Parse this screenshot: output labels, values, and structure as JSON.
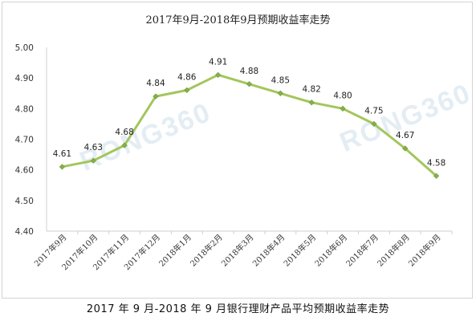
{
  "title": "2017年9月-2018年9月预期收益率走势",
  "caption": "2017 年 9 月-2018 年 9 月银行理财产品平均预期收益率走势",
  "watermark": "RONG360",
  "colors": {
    "line": "#a3c65c",
    "marker": "#86b04a",
    "axis": "#cfcfcf"
  },
  "chart_data": {
    "type": "line",
    "title": "2017年9月-2018年9月预期收益率走势",
    "categories": [
      "2017年9月",
      "2017年10月",
      "2017年11月",
      "2017年12月",
      "2018年1月",
      "2018年2月",
      "2018年3月",
      "2018年4月",
      "2018年5月",
      "2018年6月",
      "2018年7月",
      "2018年8月",
      "2018年9月"
    ],
    "series": [
      {
        "values": [
          4.61,
          4.63,
          4.68,
          4.84,
          4.86,
          4.91,
          4.88,
          4.85,
          4.82,
          4.8,
          4.75,
          4.67,
          4.58
        ]
      }
    ],
    "data_labels": [
      "4.61",
      "4.63",
      "4.68",
      "4.84",
      "4.86",
      "4.91",
      "4.88",
      "4.85",
      "4.82",
      "4.80",
      "4.75",
      "4.67",
      "4.58"
    ],
    "ylim": [
      4.4,
      5.0
    ],
    "yticks": [
      "4.40",
      "4.50",
      "4.60",
      "4.70",
      "4.80",
      "4.90",
      "5.00"
    ],
    "grid": false,
    "legend": "none"
  }
}
